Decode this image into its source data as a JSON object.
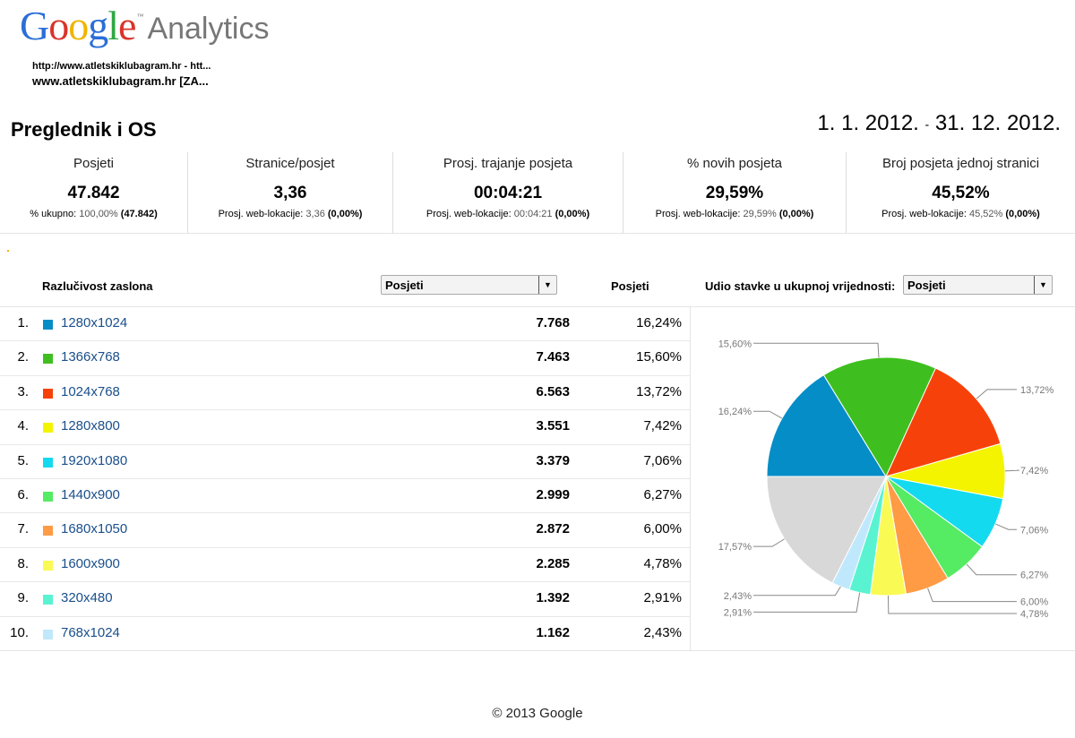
{
  "branding": {
    "logo_letters": [
      {
        "ch": "G",
        "color": "#2a6ed8"
      },
      {
        "ch": "o",
        "color": "#d9342b"
      },
      {
        "ch": "o",
        "color": "#f0b400"
      },
      {
        "ch": "g",
        "color": "#2a6ed8"
      },
      {
        "ch": "l",
        "color": "#2da744"
      },
      {
        "ch": "e",
        "color": "#d9342b"
      }
    ],
    "logo_tm": "™",
    "product": "Analytics"
  },
  "site": {
    "url": "http://www.atletskiklubagram.hr - htt...",
    "name": "www.atletskiklubagram.hr [ZA..."
  },
  "report": {
    "title": "Preglednik i OS",
    "date_start": "1. 1. 2012.",
    "date_sep": "-",
    "date_end": "31. 12. 2012."
  },
  "metrics": [
    {
      "label": "Posjeti",
      "value": "47.842",
      "sub_prefix": "% ukupno:",
      "sub_gray": "100,00%",
      "sub_bold": "(47.842)"
    },
    {
      "label": "Stranice/posjet",
      "value": "3,36",
      "sub_prefix": "Prosj. web-lokacije:",
      "sub_gray": "3,36",
      "sub_bold": "(0,00%)"
    },
    {
      "label": "Prosj. trajanje posjeta",
      "value": "00:04:21",
      "sub_prefix": "Prosj. web-lokacije:",
      "sub_gray": "00:04:21",
      "sub_bold": "(0,00%)"
    },
    {
      "label": "% novih posjeta",
      "value": "29,59%",
      "sub_prefix": "Prosj. web-lokacije:",
      "sub_gray": "29,59%",
      "sub_bold": "(0,00%)"
    },
    {
      "label": "Broj posjeta jednoj stranici",
      "value": "45,52%",
      "sub_prefix": "Prosj. web-lokacije:",
      "sub_gray": "45,52%",
      "sub_bold": "(0,00%)"
    }
  ],
  "table": {
    "dimension_header": "Razlučivost zaslona",
    "metric_select": "Posjeti",
    "metric_header": "Posjeti",
    "share_label": "Udio stavke u ukupnoj vrijednosti:",
    "share_select": "Posjeti",
    "dropdown_icon": "triangle-down",
    "rows": [
      {
        "idx": "1.",
        "label": "1280x1024",
        "value": "7.768",
        "pct": "16,24%"
      },
      {
        "idx": "2.",
        "label": "1366x768",
        "value": "7.463",
        "pct": "15,60%"
      },
      {
        "idx": "3.",
        "label": "1024x768",
        "value": "6.563",
        "pct": "13,72%"
      },
      {
        "idx": "4.",
        "label": "1280x800",
        "value": "3.551",
        "pct": "7,42%"
      },
      {
        "idx": "5.",
        "label": "1920x1080",
        "value": "3.379",
        "pct": "7,06%"
      },
      {
        "idx": "6.",
        "label": "1440x900",
        "value": "2.999",
        "pct": "6,27%"
      },
      {
        "idx": "7.",
        "label": "1680x1050",
        "value": "2.872",
        "pct": "6,00%"
      },
      {
        "idx": "8.",
        "label": "1600x900",
        "value": "2.285",
        "pct": "4,78%"
      },
      {
        "idx": "9.",
        "label": "320x480",
        "value": "1.392",
        "pct": "2,91%"
      },
      {
        "idx": "10.",
        "label": "768x1024",
        "value": "1.162",
        "pct": "2,43%"
      }
    ]
  },
  "chart_data": {
    "type": "pie",
    "start": "9 o'clock, clockwise",
    "slices": [
      {
        "label": "16,24%",
        "value": 16.24,
        "color": "#058dc7"
      },
      {
        "label": "15,60%",
        "value": 15.6,
        "color": "#3fbf1f"
      },
      {
        "label": "13,72%",
        "value": 13.72,
        "color": "#f6420a"
      },
      {
        "label": "7,42%",
        "value": 7.42,
        "color": "#f4f400"
      },
      {
        "label": "7,06%",
        "value": 7.06,
        "color": "#14daf0"
      },
      {
        "label": "6,27%",
        "value": 6.27,
        "color": "#55eb63"
      },
      {
        "label": "6,00%",
        "value": 6.0,
        "color": "#ff9b45"
      },
      {
        "label": "4,78%",
        "value": 4.78,
        "color": "#fafa55"
      },
      {
        "label": "2,91%",
        "value": 2.91,
        "color": "#5af3d2"
      },
      {
        "label": "2,43%",
        "value": 2.43,
        "color": "#c0e8fc"
      },
      {
        "label": "17,57%",
        "value": 17.57,
        "color": "#d8d8d8"
      }
    ]
  },
  "footer": "© 2013 Google"
}
